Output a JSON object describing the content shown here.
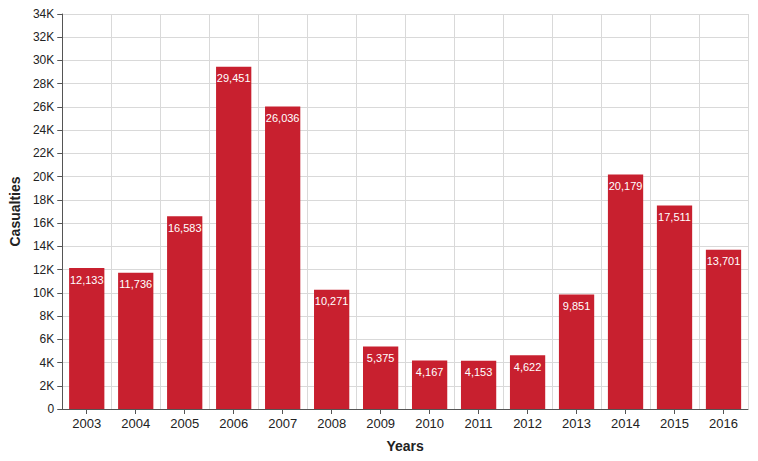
{
  "chart_data": {
    "type": "bar",
    "x_label": "Years",
    "y_label": "Casualties",
    "categories": [
      "2003",
      "2004",
      "2005",
      "2006",
      "2007",
      "2008",
      "2009",
      "2010",
      "2011",
      "2012",
      "2013",
      "2014",
      "2015",
      "2016"
    ],
    "values": [
      12133,
      11736,
      16583,
      29451,
      26036,
      10271,
      5375,
      4167,
      4153,
      4622,
      9851,
      20179,
      17511,
      13701
    ],
    "value_labels": [
      "12,133",
      "11,736",
      "16,583",
      "29,451",
      "26,036",
      "10,271",
      "5,375",
      "4,167",
      "4,153",
      "4,622",
      "9,851",
      "20,179",
      "17,511",
      "13,701"
    ],
    "color": "#c8202f",
    "ylim": [
      0,
      34000
    ],
    "yticks": [
      0,
      {
        "value": 2000,
        "label": "2K"
      },
      {
        "value": 4000,
        "label": "4K"
      },
      {
        "value": 6000,
        "label": "6K"
      },
      {
        "value": 8000,
        "label": "8K"
      },
      {
        "value": 10000,
        "label": "10K"
      },
      {
        "value": 12000,
        "label": "12K"
      },
      {
        "value": 14000,
        "label": "14K"
      },
      {
        "value": 16000,
        "label": "16K"
      },
      {
        "value": 18000,
        "label": "18K"
      },
      {
        "value": 20000,
        "label": "20K"
      },
      {
        "value": 22000,
        "label": "22K"
      },
      {
        "value": 24000,
        "label": "24K"
      },
      {
        "value": 26000,
        "label": "26K"
      },
      {
        "value": 28000,
        "label": "28K"
      },
      {
        "value": 30000,
        "label": "30K"
      },
      {
        "value": 32000,
        "label": "32K"
      },
      {
        "value": 34000,
        "label": "34K"
      }
    ],
    "grid": true,
    "data_labels": true
  }
}
